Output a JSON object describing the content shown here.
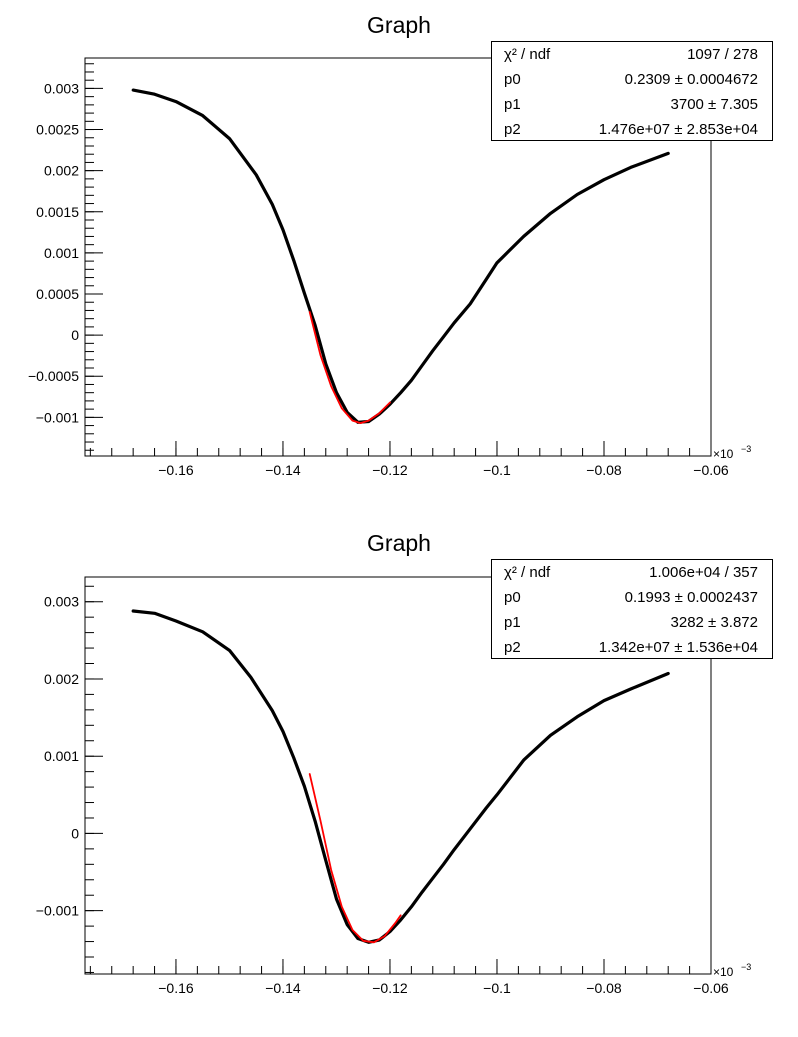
{
  "chart_data": [
    {
      "type": "scatter",
      "title": "Graph",
      "x_exponent_label": "×10",
      "x_exponent_power": "−3",
      "xlim": [
        -0.177,
        -0.06
      ],
      "ylim": [
        -0.00147,
        0.00337
      ],
      "x_ticks": [
        -0.16,
        -0.14,
        -0.12,
        -0.1,
        -0.08,
        -0.06
      ],
      "x_tick_labels": [
        "−0.16",
        "−0.14",
        "−0.12",
        "−0.1",
        "−0.08",
        "−0.06"
      ],
      "y_ticks": [
        -0.001,
        -0.0005,
        0,
        0.0005,
        0.001,
        0.0015,
        0.002,
        0.0025,
        0.003
      ],
      "y_tick_labels": [
        "−0.001",
        "−0.0005",
        "0",
        "0.0005",
        "0.001",
        "0.0015",
        "0.002",
        "0.0025",
        "0.003"
      ],
      "series": [
        {
          "color": "#000000",
          "x": [
            -0.168,
            -0.164,
            -0.16,
            -0.155,
            -0.15,
            -0.145,
            -0.142,
            -0.14,
            -0.138,
            -0.136,
            -0.134,
            -0.132,
            -0.13,
            -0.128,
            -0.126,
            -0.124,
            -0.122,
            -0.12,
            -0.118,
            -0.116,
            -0.114,
            -0.112,
            -0.11,
            -0.108,
            -0.105,
            -0.102,
            -0.1,
            -0.095,
            -0.09,
            -0.085,
            -0.08,
            -0.075,
            -0.068
          ],
          "y": [
            0.00298,
            0.00293,
            0.00284,
            0.00267,
            0.00239,
            0.00195,
            0.00159,
            0.00128,
            0.00091,
            0.00051,
            0.00012,
            -0.00035,
            -0.0007,
            -0.00094,
            -0.00106,
            -0.00105,
            -0.00096,
            -0.00084,
            -0.0007,
            -0.00055,
            -0.00037,
            -0.00019,
            -2e-05,
            0.00015,
            0.00038,
            0.00068,
            0.00088,
            0.0012,
            0.00148,
            0.00171,
            0.00189,
            0.00204,
            0.00221
          ]
        },
        {
          "color": "#ff0000",
          "x": [
            -0.135,
            -0.133,
            -0.131,
            -0.129,
            -0.127,
            -0.1255,
            -0.124,
            -0.122,
            -0.12
          ],
          "y": [
            0.00028,
            -0.00024,
            -0.00062,
            -0.00089,
            -0.00104,
            -0.00107,
            -0.00104,
            -0.00095,
            -0.00082
          ]
        }
      ],
      "stats": [
        {
          "label": "χ² / ndf",
          "value": "1097 / 278"
        },
        {
          "label": "p0",
          "value": "0.2309 ± 0.0004672"
        },
        {
          "label": "p1",
          "value": "3700 ± 7.305"
        },
        {
          "label": "p2",
          "value": "1.476e+07 ± 2.853e+04"
        }
      ]
    },
    {
      "type": "scatter",
      "title": "Graph",
      "x_exponent_label": "×10",
      "x_exponent_power": "−3",
      "xlim": [
        -0.177,
        -0.06
      ],
      "ylim": [
        -0.00182,
        0.00332
      ],
      "x_ticks": [
        -0.16,
        -0.14,
        -0.12,
        -0.1,
        -0.08,
        -0.06
      ],
      "x_tick_labels": [
        "−0.16",
        "−0.14",
        "−0.12",
        "−0.1",
        "−0.08",
        "−0.06"
      ],
      "y_ticks": [
        -0.001,
        0,
        0.001,
        0.002,
        0.003
      ],
      "y_tick_labels": [
        "−0.001",
        "0",
        "0.001",
        "0.002",
        "0.003"
      ],
      "series": [
        {
          "color": "#000000",
          "x": [
            -0.168,
            -0.164,
            -0.16,
            -0.155,
            -0.15,
            -0.146,
            -0.142,
            -0.14,
            -0.138,
            -0.136,
            -0.134,
            -0.132,
            -0.13,
            -0.128,
            -0.126,
            -0.124,
            -0.122,
            -0.12,
            -0.118,
            -0.116,
            -0.114,
            -0.112,
            -0.11,
            -0.108,
            -0.105,
            -0.102,
            -0.1,
            -0.095,
            -0.09,
            -0.085,
            -0.08,
            -0.075,
            -0.068
          ],
          "y": [
            0.00288,
            0.00285,
            0.00275,
            0.00261,
            0.00237,
            0.00202,
            0.00159,
            0.00132,
            0.00098,
            0.00061,
            0.00016,
            -0.00035,
            -0.00085,
            -0.00118,
            -0.00136,
            -0.00141,
            -0.00138,
            -0.00127,
            -0.00112,
            -0.00095,
            -0.00076,
            -0.00058,
            -0.0004,
            -0.00021,
            6e-05,
            0.00033,
            0.0005,
            0.00095,
            0.00127,
            0.00151,
            0.00172,
            0.00187,
            0.00207
          ]
        },
        {
          "color": "#ff0000",
          "x": [
            -0.135,
            -0.133,
            -0.131,
            -0.129,
            -0.127,
            -0.125,
            -0.123,
            -0.121,
            -0.119,
            -0.118
          ],
          "y": [
            0.00077,
            0.00017,
            -0.00047,
            -0.00095,
            -0.00125,
            -0.00139,
            -0.00141,
            -0.00133,
            -0.00116,
            -0.00106
          ]
        }
      ],
      "stats": [
        {
          "label": "χ² / ndf",
          "value": "1.006e+04 / 357"
        },
        {
          "label": "p0",
          "value": "0.1993 ± 0.0002437"
        },
        {
          "label": "p1",
          "value": "3282 ± 3.872"
        },
        {
          "label": "p2",
          "value": "1.342e+07 ± 1.536e+04"
        }
      ]
    }
  ]
}
